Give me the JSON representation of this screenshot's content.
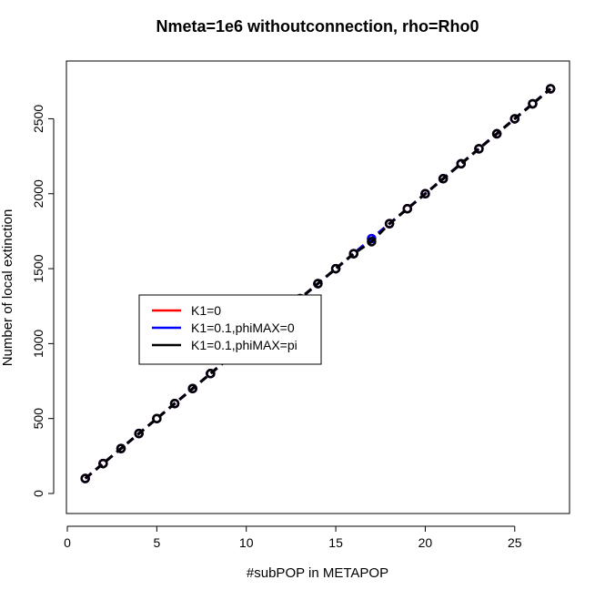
{
  "chart_data": {
    "type": "line",
    "title": "Nmeta=1e6  withoutconnection, rho=Rho0",
    "xlabel": "#subPOP in METAPOP",
    "ylabel": "Number of local extinction",
    "xlim": [
      0,
      28
    ],
    "ylim": [
      0,
      2800
    ],
    "xticks": [
      0,
      5,
      10,
      15,
      20,
      25
    ],
    "yticks": [
      0,
      500,
      1000,
      1500,
      2000,
      2500
    ],
    "grid": false,
    "legend_position": "center-left",
    "series": [
      {
        "name": "K1=0",
        "color": "#ff0000",
        "line_style": "dashed",
        "marker": "circle",
        "x": [
          1,
          2,
          3,
          4,
          5,
          6,
          7,
          8,
          9,
          10,
          11,
          12,
          13,
          14,
          15,
          16,
          17,
          18,
          19,
          20,
          21,
          22,
          23,
          24,
          25,
          26,
          27
        ],
        "y": [
          100,
          200,
          300,
          400,
          500,
          600,
          700,
          800,
          900,
          1000,
          1100,
          1200,
          1300,
          1400,
          1500,
          1600,
          1700,
          1800,
          1900,
          2000,
          2100,
          2200,
          2300,
          2400,
          2500,
          2600,
          2700
        ]
      },
      {
        "name": "K1=0.1,phiMAX=0",
        "color": "#0000ff",
        "line_style": "dashed",
        "marker": "circle",
        "x": [
          1,
          2,
          3,
          4,
          5,
          6,
          7,
          8,
          9,
          10,
          11,
          12,
          13,
          14,
          15,
          16,
          17,
          18,
          19,
          20,
          21,
          22,
          23,
          24,
          25,
          26,
          27
        ],
        "y": [
          100,
          200,
          300,
          400,
          500,
          600,
          700,
          800,
          900,
          1000,
          1100,
          1200,
          1300,
          1400,
          1500,
          1600,
          1700,
          1800,
          1900,
          2000,
          2100,
          2200,
          2300,
          2400,
          2500,
          2600,
          2700
        ]
      },
      {
        "name": "K1=0.1,phiMAX=pi",
        "color": "#000000",
        "line_style": "dashed",
        "marker": "circle",
        "x": [
          1,
          2,
          3,
          4,
          5,
          6,
          7,
          8,
          9,
          10,
          11,
          12,
          13,
          14,
          15,
          16,
          17,
          18,
          19,
          20,
          21,
          22,
          23,
          24,
          25,
          26,
          27
        ],
        "y": [
          100,
          200,
          300,
          400,
          500,
          600,
          700,
          800,
          900,
          1000,
          1100,
          1200,
          1300,
          1400,
          1500,
          1600,
          1680,
          1800,
          1900,
          2000,
          2100,
          2200,
          2300,
          2400,
          2500,
          2600,
          2700
        ]
      }
    ]
  }
}
